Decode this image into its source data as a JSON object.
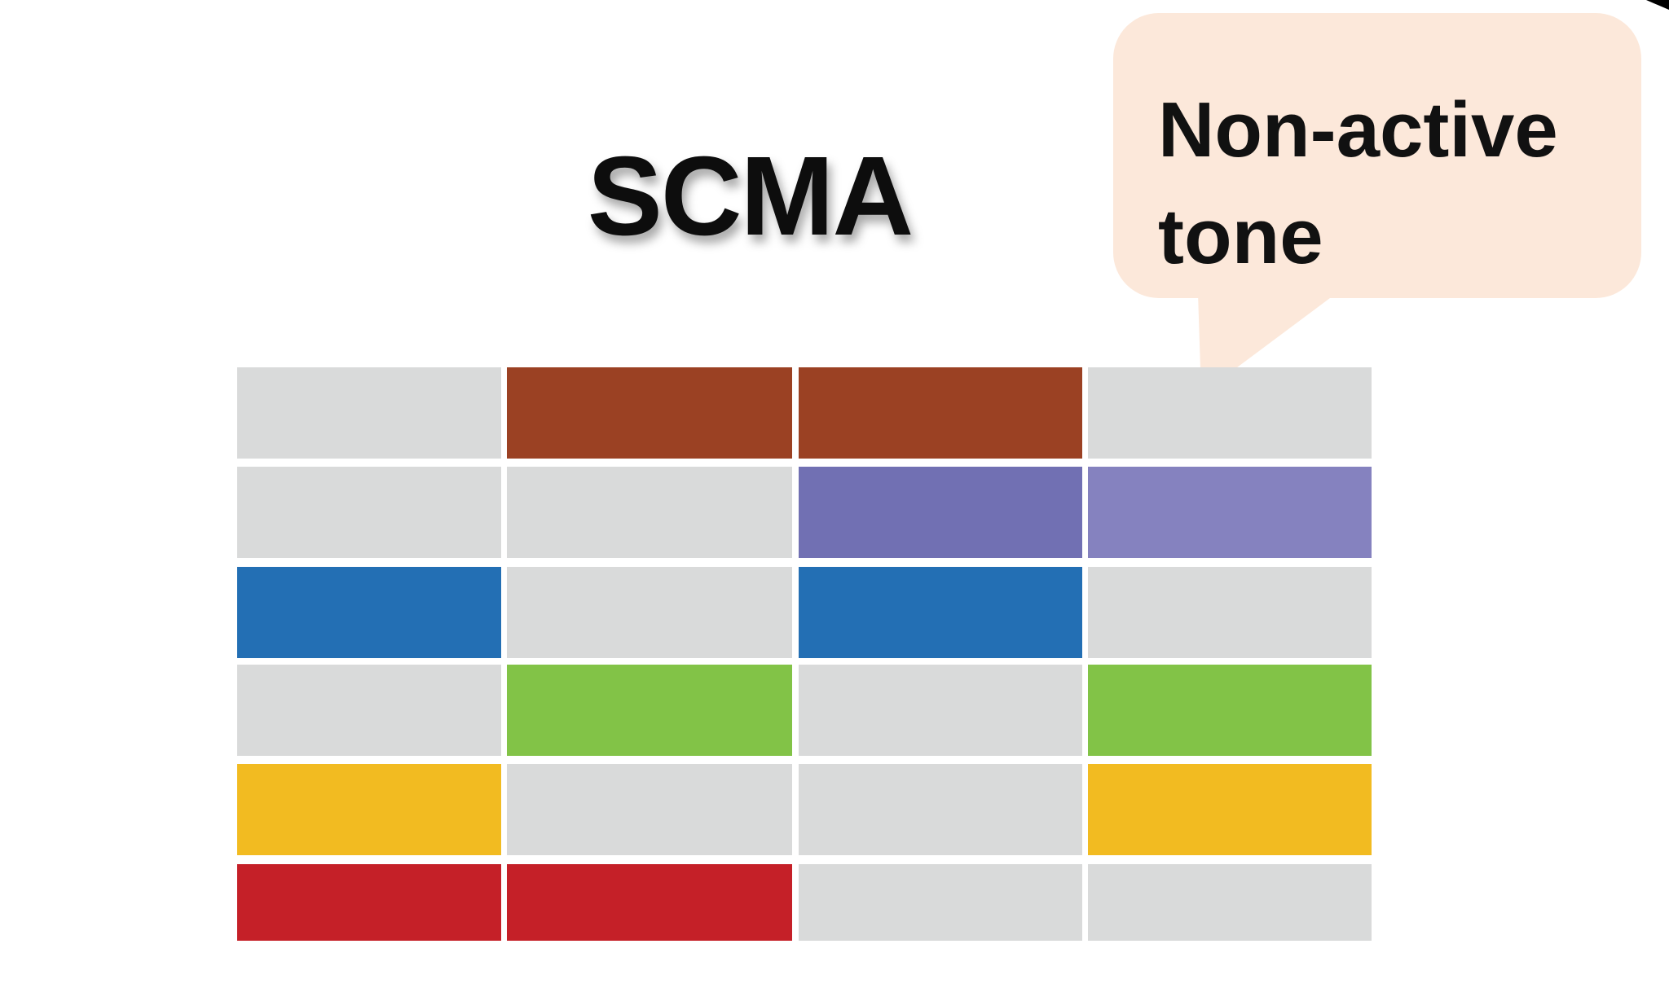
{
  "title": "SCMA",
  "callout": {
    "line1": "Non-active",
    "line2": "tone",
    "fill": "#fce8da"
  },
  "colors": {
    "inactive": "#d9dada",
    "brown": "#9b4123",
    "purple": "#7170b3",
    "purple_light": "#8582bf",
    "blue": "#236fb4",
    "green": "#82c347",
    "yellow": "#f2bb21",
    "red": "#c52028"
  },
  "grid": {
    "rows": [
      [
        "inactive",
        "brown",
        "brown",
        "inactive"
      ],
      [
        "inactive",
        "inactive",
        "purple",
        "purple_light"
      ],
      [
        "blue",
        "inactive",
        "blue",
        "inactive"
      ],
      [
        "inactive",
        "green",
        "inactive",
        "green"
      ],
      [
        "yellow",
        "inactive",
        "inactive",
        "yellow"
      ],
      [
        "red",
        "red",
        "inactive",
        "inactive"
      ]
    ]
  }
}
